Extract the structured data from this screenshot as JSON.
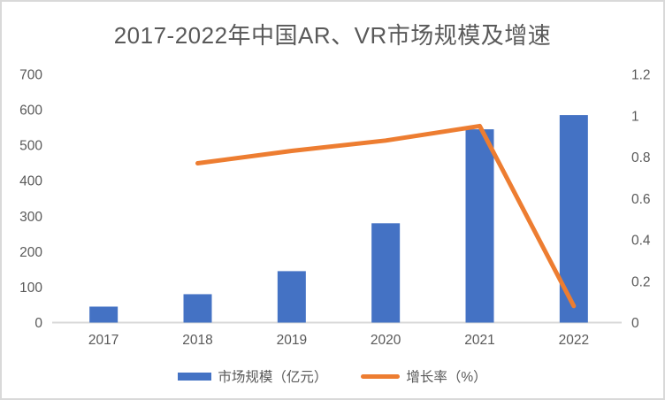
{
  "title": "2017-2022年中国AR、VR市场规模及增速",
  "colors": {
    "bar": "#4472C4",
    "line": "#ED7D31",
    "title_text": "#595959",
    "axis_text": "#595959",
    "axis_line": "#D9D9D9",
    "frame_border": "#D9D9D9",
    "background": "#FFFFFF"
  },
  "chart_data": {
    "type": "combo",
    "title": "2017-2022年中国AR、VR市场规模及增速",
    "categories": [
      "2017",
      "2018",
      "2019",
      "2020",
      "2021",
      "2022"
    ],
    "series": [
      {
        "name": "市场规模（亿元）",
        "type": "bar",
        "axis": "left",
        "color": "#4472C4",
        "values": [
          45,
          80,
          145,
          280,
          545,
          585
        ]
      },
      {
        "name": "增长率（%）",
        "type": "line",
        "axis": "right",
        "color": "#ED7D31",
        "values": [
          null,
          0.77,
          0.83,
          0.88,
          0.95,
          0.08
        ]
      }
    ],
    "left_axis": {
      "min": 0,
      "max": 700,
      "ticks": [
        "0",
        "100",
        "200",
        "300",
        "400",
        "500",
        "600",
        "700"
      ]
    },
    "right_axis": {
      "min": 0,
      "max": 1.2,
      "ticks": [
        "0",
        "0.2",
        "0.4",
        "0.6",
        "0.8",
        "1",
        "1.2"
      ]
    },
    "legend_position": "bottom",
    "grid": false
  }
}
